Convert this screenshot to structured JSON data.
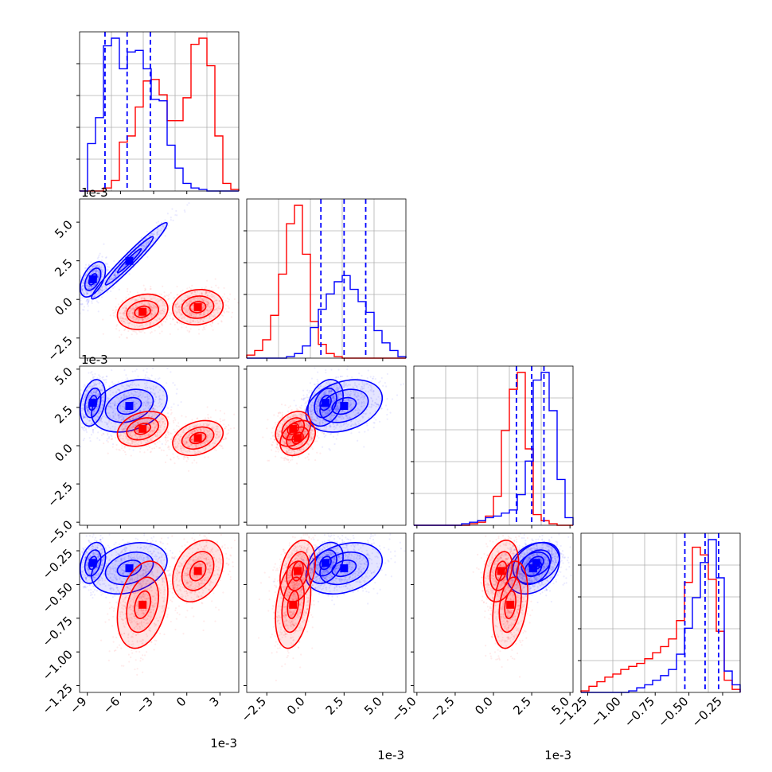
{
  "chart_data": {
    "type": "corner",
    "series": [
      {
        "name": "",
        "color": "#0000ff"
      },
      {
        "name": "",
        "color": "#ff0000"
      }
    ],
    "params": [
      {
        "range": [
          -0.0097,
          0.0047
        ],
        "offset_text": "1e-3",
        "ticks": [
          -0.009,
          -0.006,
          -0.003,
          0.0,
          0.003
        ],
        "tick_labels": [
          "−9",
          "−6",
          "−3",
          "0",
          "3"
        ]
      },
      {
        "range": [
          -0.0038,
          0.0065
        ],
        "offset_text": "1e-3",
        "ticks": [
          -0.0025,
          0.0,
          0.0025,
          0.005
        ],
        "tick_labels": [
          "−2.5",
          "0.0",
          "2.5",
          "5.0"
        ]
      },
      {
        "range": [
          -0.0052,
          0.0052
        ],
        "offset_text": "1e-3",
        "ticks": [
          -0.005,
          -0.0025,
          0.0,
          0.0025,
          0.005
        ],
        "tick_labels": [
          "−5.0",
          "−2.5",
          "0.0",
          "2.5",
          "5.0"
        ]
      },
      {
        "range": [
          -1.3,
          -0.12
        ],
        "offset_text": "",
        "ticks": [
          -1.25,
          -1.0,
          -0.75,
          -0.5,
          -0.25
        ],
        "tick_labels": [
          "−1.25",
          "−1.00",
          "−0.75",
          "−0.50",
          "−0.25"
        ]
      }
    ],
    "quantiles": {
      "blue": [
        [
          -0.0074,
          -0.0054,
          -0.0033
        ],
        [
          0.001,
          0.0025,
          0.0039
        ],
        [
          0.0015,
          0.0025,
          0.0033
        ],
        [
          -0.53,
          -0.38,
          -0.28
        ]
      ]
    },
    "histograms": [
      {
        "blue": [
          0.0,
          0.31,
          0.48,
          0.95,
          1.0,
          0.8,
          0.91,
          0.92,
          0.8,
          0.6,
          0.59,
          0.3,
          0.15,
          0.05,
          0.02,
          0.01,
          0.0,
          0.0,
          0.0,
          0.0
        ],
        "red": [
          0.0,
          0.0,
          0.0,
          0.02,
          0.07,
          0.32,
          0.36,
          0.55,
          0.72,
          0.73,
          0.63,
          0.46,
          0.46,
          0.61,
          0.96,
          1.0,
          0.82,
          0.36,
          0.05,
          0.01
        ]
      },
      {
        "blue": [
          0.0,
          0.0,
          0.0,
          0.0,
          0.0,
          0.01,
          0.03,
          0.08,
          0.2,
          0.32,
          0.42,
          0.5,
          0.54,
          0.45,
          0.37,
          0.3,
          0.18,
          0.1,
          0.05,
          0.01
        ],
        "red": [
          0.02,
          0.05,
          0.12,
          0.28,
          0.55,
          0.88,
          1.0,
          0.68,
          0.24,
          0.09,
          0.03,
          0.01,
          0.0,
          0.0,
          0.0,
          0.0,
          0.0,
          0.0,
          0.0,
          0.0
        ]
      },
      {
        "blue": [
          0.0,
          0.0,
          0.0,
          0.0,
          0.0,
          0.0,
          0.01,
          0.02,
          0.03,
          0.05,
          0.06,
          0.08,
          0.1,
          0.2,
          0.42,
          0.95,
          1.0,
          0.75,
          0.3,
          0.05
        ],
        "red": [
          0.0,
          0.0,
          0.0,
          0.0,
          0.0,
          0.0,
          0.0,
          0.01,
          0.02,
          0.06,
          0.19,
          0.62,
          0.89,
          1.0,
          0.5,
          0.07,
          0.03,
          0.01,
          0.0,
          0.0
        ]
      },
      {
        "blue": [
          0.0,
          0.0,
          0.0,
          0.0,
          0.0,
          0.0,
          0.01,
          0.03,
          0.05,
          0.08,
          0.11,
          0.15,
          0.25,
          0.42,
          0.62,
          0.85,
          1.0,
          0.75,
          0.14,
          0.05
        ],
        "red": [
          0.01,
          0.04,
          0.07,
          0.1,
          0.12,
          0.15,
          0.17,
          0.19,
          0.22,
          0.26,
          0.3,
          0.35,
          0.47,
          0.72,
          0.95,
          0.9,
          0.74,
          0.4,
          0.08,
          0.02
        ]
      }
    ],
    "clusters": {
      "blue": [
        {
          "mean": [
            -0.0052,
            0.0025,
            0.0026,
            -0.38
          ],
          "sd": [
            0.0018,
            0.0013,
            0.0009,
            0.1
          ],
          "corr01": 0.97
        },
        {
          "mean": [
            -0.0085,
            0.0013,
            0.0028,
            -0.34
          ],
          "sd": [
            0.0006,
            0.0006,
            0.0008,
            0.08
          ],
          "corr01": 0.5
        }
      ],
      "red": [
        {
          "mean": [
            -0.004,
            -0.0008,
            0.0011,
            -0.65
          ],
          "sd": [
            0.0012,
            0.0006,
            0.0006,
            0.17
          ],
          "corr01": 0.2
        },
        {
          "mean": [
            0.001,
            -0.0005,
            0.0005,
            -0.4
          ],
          "sd": [
            0.0012,
            0.0006,
            0.0006,
            0.12
          ],
          "corr01": 0.1
        }
      ]
    },
    "grid": true,
    "legend": "none"
  }
}
